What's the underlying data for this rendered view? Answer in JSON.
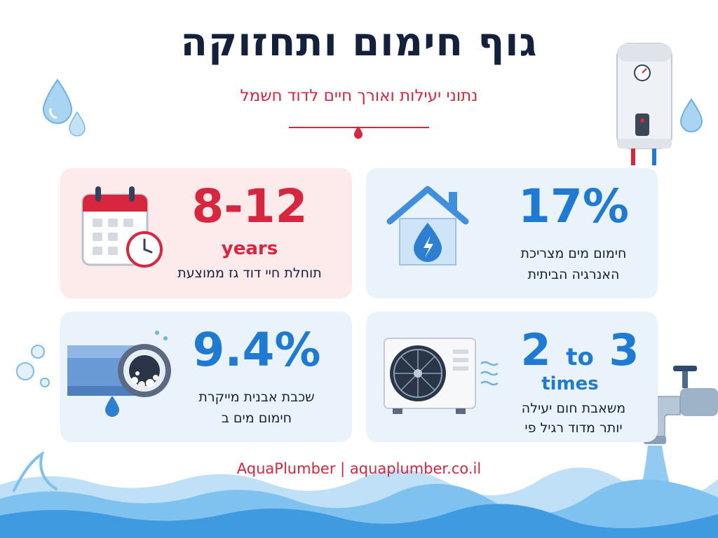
{
  "header": {
    "title": "גוף חימום ותחזוקה",
    "subtitle": "נתוני יעילות ואורך חיים לדוד חשמל"
  },
  "cards": [
    {
      "id": "lifespan",
      "stat": "8-12",
      "unit": "years",
      "caption": "תוחלת חיי דוד גז ממוצעת",
      "icon": "calendar-clock-icon"
    },
    {
      "id": "energy-share",
      "stat": "17%",
      "caption_line1": "חימום מים מצריכת",
      "caption_line2": "האנרגיה הביתית",
      "icon": "house-water-drop-icon"
    },
    {
      "id": "limescale",
      "stat": "9.4%",
      "caption_line1": "שכבת אבנית מייקרת",
      "caption_line2": "חימום מים ב",
      "icon": "scaled-pipe-icon"
    },
    {
      "id": "heat-pump",
      "stat_a": "2",
      "stat_mid": "to",
      "stat_b": "3",
      "unit": "times",
      "caption_line1": "משאבת חום יעילה",
      "caption_line2": "יותר מדוד רגיל פי",
      "icon": "heat-pump-unit-icon"
    }
  ],
  "footer": {
    "text": "AquaPlumber | aquaplumber.co.il"
  },
  "colors": {
    "navy": "#14213d",
    "red": "#d7263d",
    "blue": "#1f7ad3",
    "card_blue": "#eaf3fc",
    "card_pink": "#fdebec"
  }
}
